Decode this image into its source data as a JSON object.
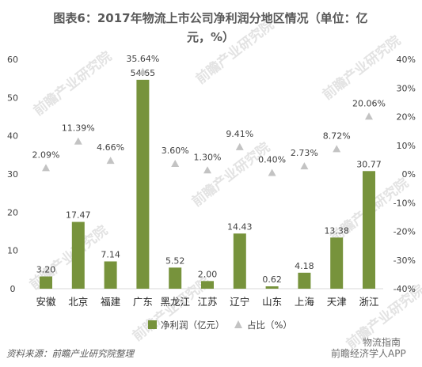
{
  "title_line1": "图表6：2017年物流上市公司净利润分地区情况（单位：亿",
  "title_line2": "元，%）",
  "source": "资料来源：前瞻产业研究院整理",
  "watermark": "前瞻产业研究院",
  "watermark_bottom": "前瞻经济学人APP",
  "watermark_account": "物流指南",
  "colors": {
    "bar": "#77933c",
    "marker": "#c3c3c3",
    "text": "#404040",
    "axis": "#d9d9d9"
  },
  "chart_data": {
    "type": "bar",
    "categories": [
      "安徽",
      "北京",
      "福建",
      "广东",
      "黑龙江",
      "江苏",
      "辽宁",
      "山东",
      "上海",
      "天津",
      "浙江"
    ],
    "series": [
      {
        "name": "净利润（亿元）",
        "type": "bar",
        "axis": "left",
        "values": [
          3.2,
          17.47,
          7.14,
          54.65,
          5.52,
          2.0,
          14.43,
          0.62,
          4.18,
          13.38,
          30.77
        ],
        "labels": [
          "3.20",
          "17.47",
          "7.14",
          "54.65",
          "5.52",
          "2.00",
          "14.43",
          "0.62",
          "4.18",
          "13.38",
          "30.77"
        ]
      },
      {
        "name": "占比（%）",
        "type": "scatter",
        "marker": "triangle",
        "axis": "right",
        "values": [
          2.09,
          11.39,
          4.66,
          35.64,
          3.6,
          1.3,
          9.41,
          0.4,
          2.73,
          8.72,
          20.06
        ],
        "labels": [
          "2.09%",
          "11.39%",
          "4.66%",
          "35.64%",
          "3.60%",
          "1.30%",
          "9.41%",
          "0.40%",
          "2.73%",
          "8.72%",
          "20.06%"
        ]
      }
    ],
    "y_left": {
      "ylim": [
        0,
        60
      ],
      "ticks": [
        "0",
        "10",
        "20",
        "30",
        "40",
        "50",
        "60"
      ]
    },
    "y_right": {
      "ylim": [
        -40,
        40
      ],
      "ticks": [
        "-40%",
        "-30%",
        "-20%",
        "-10%",
        "0%",
        "10%",
        "20%",
        "30%",
        "40%"
      ]
    },
    "legend": {
      "position": "bottom",
      "items": [
        "净利润（亿元）",
        "占比（%）"
      ]
    },
    "grid": false
  }
}
